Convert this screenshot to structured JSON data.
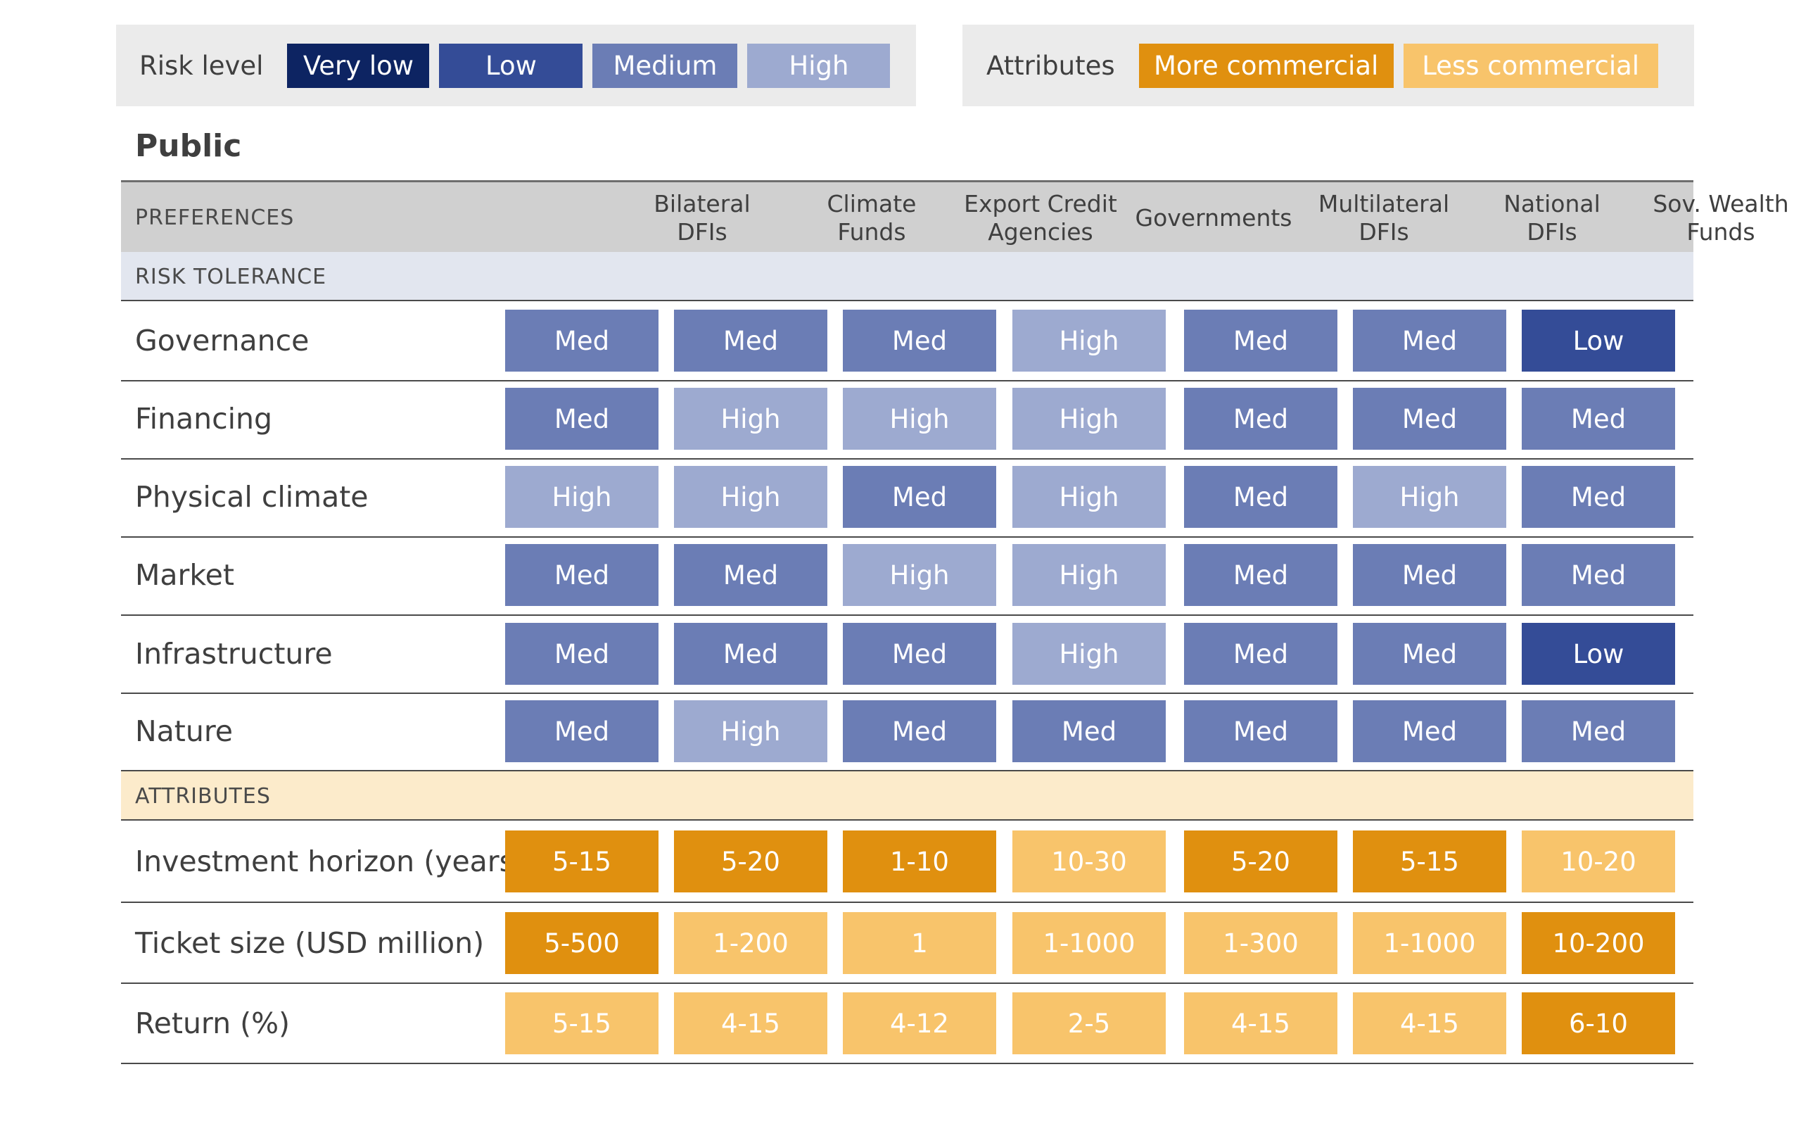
{
  "legend": {
    "risk_title": "Risk level",
    "risk_levels": [
      {
        "label": "Very low",
        "color": "#0d2462"
      },
      {
        "label": "Low",
        "color": "#344c97"
      },
      {
        "label": "Medium",
        "color": "#6b7db5"
      },
      {
        "label": "High",
        "color": "#9daad0"
      }
    ],
    "attr_title": "Attributes",
    "attr_levels": [
      {
        "label": "More commercial",
        "color": "#e0900f"
      },
      {
        "label": "Less commercial",
        "color": "#f8c46b"
      }
    ]
  },
  "section_title": "Public",
  "header_label": "PREFERENCES",
  "columns": [
    "Bilateral\nDFIs",
    "Climate\nFunds",
    "Export Credit\nAgencies",
    "Governments",
    "Multilateral\nDFIs",
    "National\nDFIs",
    "Sov. Wealth\nFunds"
  ],
  "risk_header": "RISK TOLERANCE",
  "risk_rows": [
    {
      "label": "Governance",
      "values": [
        "Med",
        "Med",
        "Med",
        "High",
        "Med",
        "Med",
        "Low"
      ]
    },
    {
      "label": "Financing",
      "values": [
        "Med",
        "High",
        "High",
        "High",
        "Med",
        "Med",
        "Med"
      ]
    },
    {
      "label": "Physical climate",
      "values": [
        "High",
        "High",
        "Med",
        "High",
        "Med",
        "High",
        "Med"
      ]
    },
    {
      "label": "Market",
      "values": [
        "Med",
        "Med",
        "High",
        "High",
        "Med",
        "Med",
        "Med"
      ]
    },
    {
      "label": "Infrastructure",
      "values": [
        "Med",
        "Med",
        "Med",
        "High",
        "Med",
        "Med",
        "Low"
      ]
    },
    {
      "label": "Nature",
      "values": [
        "Med",
        "High",
        "Med",
        "Med",
        "Med",
        "Med",
        "Med"
      ]
    }
  ],
  "attr_header": "ATTRIBUTES",
  "attr_rows": [
    {
      "label": "Investment horizon (years)",
      "values": [
        "5-15",
        "5-20",
        "1-10",
        "10-30",
        "5-20",
        "5-15",
        "10-20"
      ],
      "levels": [
        "more",
        "more",
        "more",
        "less",
        "more",
        "more",
        "less"
      ]
    },
    {
      "label": "Ticket size (USD million)",
      "values": [
        "5-500",
        "1-200",
        "1",
        "1-1000",
        "1-300",
        "1-1000",
        "10-200"
      ],
      "levels": [
        "more",
        "less",
        "less",
        "less",
        "less",
        "less",
        "more"
      ]
    },
    {
      "label": "Return (%)",
      "values": [
        "5-15",
        "4-15",
        "4-12",
        "2-5",
        "4-15",
        "4-15",
        "6-10"
      ],
      "levels": [
        "less",
        "less",
        "less",
        "less",
        "less",
        "less",
        "more"
      ]
    }
  ],
  "colors": {
    "Low": "#344c97",
    "Med": "#6b7db5",
    "High": "#9daad0",
    "more": "#e0900f",
    "less": "#f8c46b"
  }
}
